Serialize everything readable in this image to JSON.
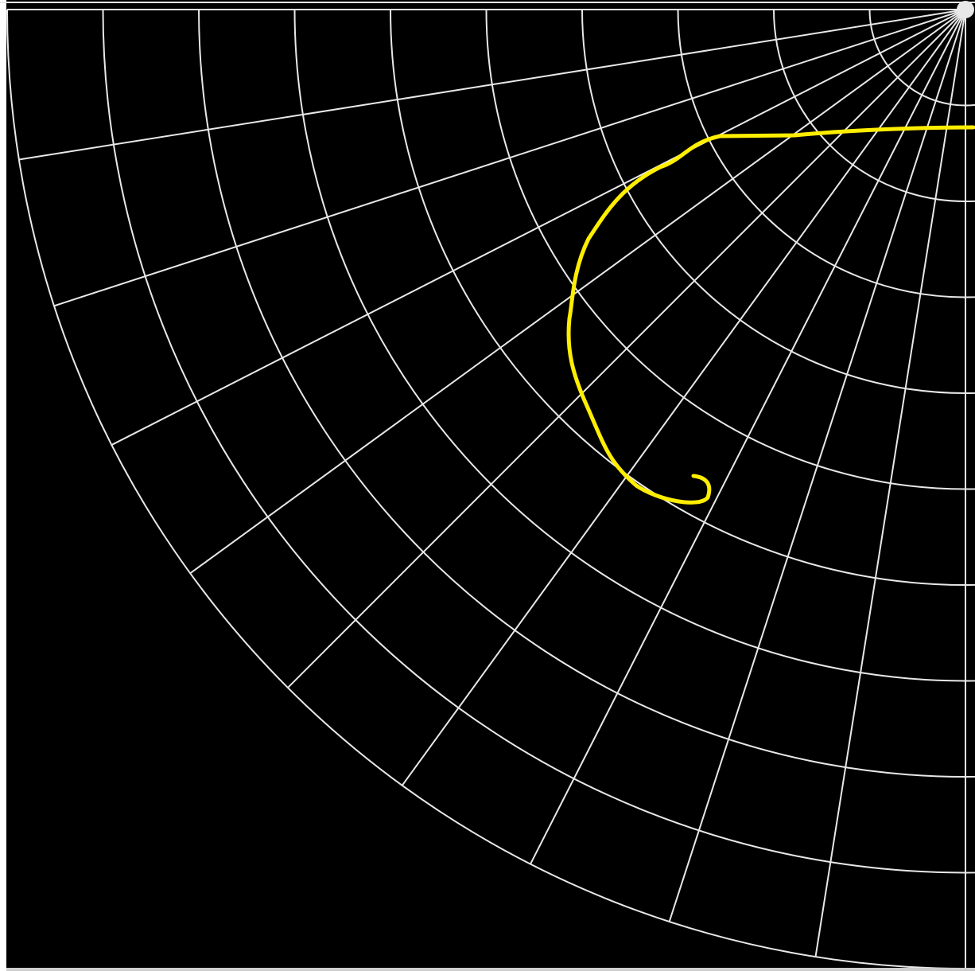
{
  "colors": {
    "background": "#000000",
    "grid": "#e8e8e8",
    "trace": "#ffee00",
    "frame": "#ffffff",
    "frame_bottom": "#cfcfcf"
  },
  "grid": {
    "type": "polar-quarter",
    "rings": 10,
    "spokes": 11
  }
}
